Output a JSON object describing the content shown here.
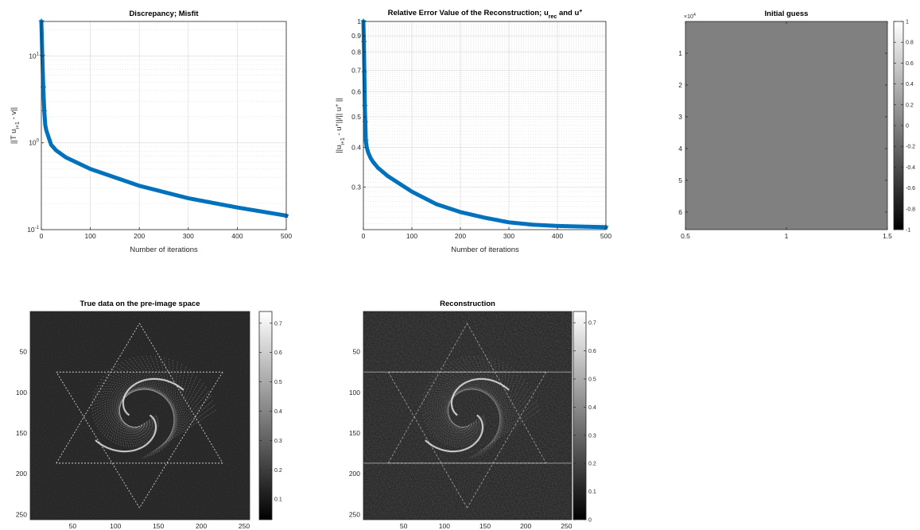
{
  "chart_data": [
    {
      "id": "discrepancy",
      "type": "line",
      "title": "Discrepancy; Misfit",
      "xlabel": "Number of iterations",
      "ylabel": "||T u_{i+1} - v||",
      "xlim": [
        0,
        500
      ],
      "ylim": [
        0.1,
        25
      ],
      "yscale": "log",
      "grid": true,
      "xticks": [
        "0",
        "100",
        "200",
        "300",
        "400",
        "500"
      ],
      "yticks": [
        {
          "base": "10",
          "exp": "1"
        },
        {
          "base": "10",
          "exp": "0"
        },
        {
          "base": "10",
          "exp": "-1"
        }
      ],
      "color": "#0072bd",
      "marker": "star",
      "series": [
        {
          "x": [
            0,
            2,
            4,
            6,
            8,
            10,
            15,
            20,
            30,
            50,
            100,
            200,
            300,
            400,
            500
          ],
          "y": [
            25,
            10,
            4.3,
            2.3,
            1.6,
            1.4,
            1.15,
            0.95,
            0.82,
            0.68,
            0.5,
            0.32,
            0.23,
            0.18,
            0.145
          ]
        }
      ]
    },
    {
      "id": "relative-error",
      "type": "line",
      "title": "Relative Error Value of the Reconstruction; u_rec and u+",
      "xlabel": "Number of iterations",
      "ylabel": "||u_{i+1} - u+||/|| u+ ||",
      "xlim": [
        0,
        500
      ],
      "ylim": [
        0.22,
        1.0
      ],
      "yscale": "log",
      "grid": true,
      "xticks": [
        "0",
        "100",
        "200",
        "300",
        "400",
        "500"
      ],
      "yticks": [
        "1",
        "0.9",
        "0.8",
        "0.7",
        "0.6",
        "0.5",
        "0.4",
        "0.3"
      ],
      "color": "#0072bd",
      "marker": "star",
      "series": [
        {
          "x": [
            0,
            1,
            2,
            3,
            4,
            5,
            7,
            10,
            15,
            20,
            30,
            50,
            100,
            150,
            200,
            250,
            300,
            350,
            400,
            450,
            500
          ],
          "y": [
            1.0,
            0.86,
            0.69,
            0.54,
            0.48,
            0.42,
            0.4,
            0.385,
            0.37,
            0.36,
            0.345,
            0.325,
            0.29,
            0.265,
            0.25,
            0.24,
            0.232,
            0.228,
            0.226,
            0.225,
            0.224
          ]
        }
      ]
    },
    {
      "id": "initial-guess",
      "type": "heatmap",
      "title": "Initial guess",
      "xlim": [
        0.5,
        1.5
      ],
      "ylim": [
        0,
        65536
      ],
      "xticks": [
        "0.5",
        "1",
        "1.5"
      ],
      "yticks": [
        "1",
        "2",
        "3",
        "4",
        "5",
        "6"
      ],
      "yexponent": "×10^4",
      "fill_value": 0,
      "colorbar": {
        "min": -1,
        "max": 1,
        "ticks": [
          "1",
          "0.8",
          "0.6",
          "0.4",
          "0.2",
          "0",
          "-0.2",
          "-0.4",
          "-0.6",
          "-0.8",
          "-1"
        ]
      }
    },
    {
      "id": "true-data",
      "type": "heatmap",
      "title": "True data on the pre-image space",
      "xlim": [
        1,
        256
      ],
      "ylim": [
        1,
        256
      ],
      "xticks": [
        "50",
        "100",
        "150",
        "200",
        "250"
      ],
      "yticks": [
        "50",
        "100",
        "150",
        "200",
        "250"
      ],
      "colorbar": {
        "min": 0.03,
        "max": 0.74,
        "ticks": [
          "0.7",
          "0.6",
          "0.5",
          "0.4",
          "0.3",
          "0.2",
          "0.1"
        ]
      }
    },
    {
      "id": "reconstruction",
      "type": "heatmap",
      "title": "Reconstruction",
      "xlim": [
        1,
        256
      ],
      "ylim": [
        1,
        256
      ],
      "xticks": [
        "50",
        "100",
        "150",
        "200",
        "250"
      ],
      "yticks": [
        "50",
        "100",
        "150",
        "200",
        "250"
      ],
      "colorbar": {
        "min": 0,
        "max": 0.74,
        "ticks": [
          "0.7",
          "0.6",
          "0.5",
          "0.4",
          "0.3",
          "0.2",
          "0.1",
          "0"
        ]
      }
    }
  ],
  "colors": {
    "line": "#0072bd",
    "grid": "#dcdcdc",
    "axis": "#262626",
    "initial_fill": "#808080",
    "image_bg": "#1c1c1c"
  }
}
